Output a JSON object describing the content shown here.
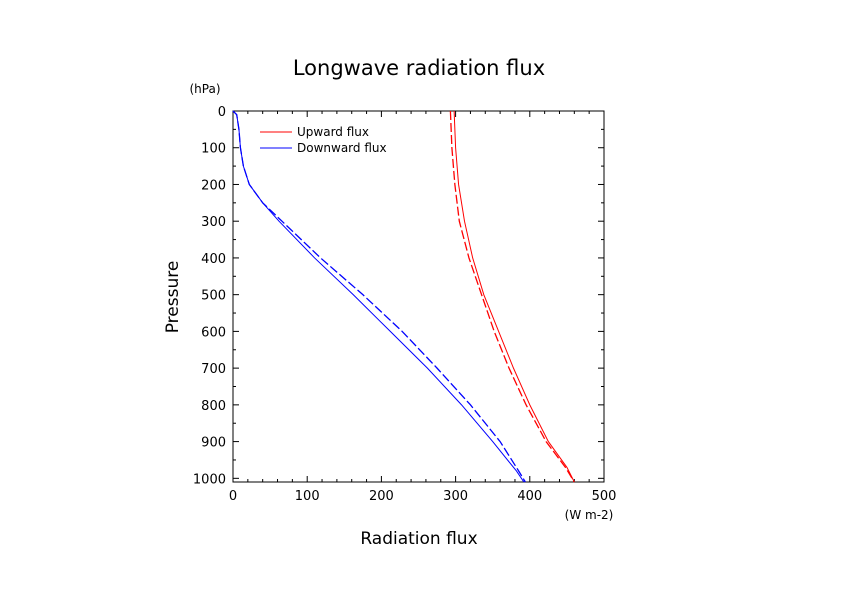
{
  "chart_data": {
    "type": "line",
    "title": "Longwave radiation flux",
    "xlabel": "Radiation flux",
    "ylabel": "Pressure",
    "x_unit": "(W m-2)",
    "y_unit": "(hPa)",
    "xlim": [
      0,
      500
    ],
    "ylim": [
      1010,
      0
    ],
    "y_inverted": true,
    "x_ticks": [
      0,
      100,
      200,
      300,
      400,
      500
    ],
    "y_ticks": [
      0,
      100,
      200,
      300,
      400,
      500,
      600,
      700,
      800,
      900,
      1000
    ],
    "grid": false,
    "legend_position": "top-left",
    "legend": [
      {
        "label": "Upward flux",
        "color": "#ff0000"
      },
      {
        "label": "Downward flux",
        "color": "#0000ff"
      }
    ],
    "series": [
      {
        "name": "Upward flux",
        "style": "solid",
        "color": "#ff0000",
        "points": [
          [
            298,
            0
          ],
          [
            299,
            50
          ],
          [
            300,
            100
          ],
          [
            304,
            200
          ],
          [
            312,
            300
          ],
          [
            323,
            400
          ],
          [
            338,
            500
          ],
          [
            358,
            600
          ],
          [
            378,
            700
          ],
          [
            400,
            800
          ],
          [
            425,
            900
          ],
          [
            450,
            970
          ],
          [
            460,
            1010
          ]
        ]
      },
      {
        "name": "Upward flux (dashed)",
        "style": "dashed",
        "color": "#ff0000",
        "points": [
          [
            293,
            0
          ],
          [
            294,
            50
          ],
          [
            295,
            100
          ],
          [
            299,
            200
          ],
          [
            305,
            300
          ],
          [
            318,
            400
          ],
          [
            335,
            500
          ],
          [
            352,
            600
          ],
          [
            372,
            700
          ],
          [
            395,
            800
          ],
          [
            422,
            900
          ],
          [
            448,
            970
          ],
          [
            460,
            1010
          ]
        ]
      },
      {
        "name": "Downward flux",
        "style": "solid",
        "color": "#0000ff",
        "points": [
          [
            0,
            0
          ],
          [
            5,
            10
          ],
          [
            8,
            50
          ],
          [
            10,
            100
          ],
          [
            14,
            150
          ],
          [
            22,
            200
          ],
          [
            40,
            250
          ],
          [
            62,
            300
          ],
          [
            110,
            400
          ],
          [
            162,
            500
          ],
          [
            212,
            600
          ],
          [
            262,
            700
          ],
          [
            308,
            800
          ],
          [
            350,
            900
          ],
          [
            382,
            980
          ],
          [
            392,
            1010
          ]
        ]
      },
      {
        "name": "Downward flux (dashed)",
        "style": "dashed",
        "color": "#0000ff",
        "points": [
          [
            0,
            0
          ],
          [
            5,
            10
          ],
          [
            8,
            50
          ],
          [
            10,
            100
          ],
          [
            14,
            150
          ],
          [
            22,
            200
          ],
          [
            40,
            250
          ],
          [
            66,
            300
          ],
          [
            118,
            400
          ],
          [
            175,
            500
          ],
          [
            228,
            600
          ],
          [
            275,
            700
          ],
          [
            320,
            800
          ],
          [
            360,
            900
          ],
          [
            385,
            980
          ],
          [
            394,
            1010
          ]
        ]
      }
    ]
  }
}
